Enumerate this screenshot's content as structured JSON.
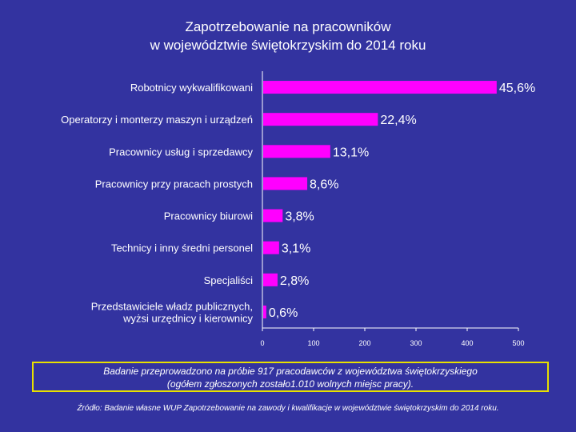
{
  "title": {
    "line1": "Zapotrzebowanie na pracowników",
    "line2": "w województwie świętokrzyskim do 2014 roku"
  },
  "chart_data": {
    "type": "bar",
    "orientation": "horizontal",
    "categories": [
      [
        "Robotnicy  wykwalifikowani"
      ],
      [
        "Operatorzy i monterzy maszyn i urządzeń"
      ],
      [
        "Pracownicy usług i sprzedawcy"
      ],
      [
        "Pracownicy przy pracach prostych"
      ],
      [
        "Pracownicy biurowi"
      ],
      [
        "Technicy i inny średni personel"
      ],
      [
        "Specjaliści"
      ],
      [
        "Przedstawiciele władz publicznych,",
        "wyżsi urzędnicy i kierownicy"
      ]
    ],
    "values": [
      45.6,
      22.4,
      13.1,
      8.6,
      3.8,
      3.1,
      2.8,
      0.6
    ],
    "value_labels": [
      "45,6%",
      "22,4%",
      "13,1%",
      "8,6%",
      "3,8%",
      "3,1%",
      "2,8%",
      "0,6%"
    ],
    "axis_scale": "value_percent_x10",
    "xlim": [
      0,
      500
    ],
    "xticks": [
      "0",
      "100",
      "200",
      "300",
      "400",
      "500"
    ],
    "bar_color": "#ff00ff",
    "grid": false
  },
  "note": {
    "line1": "Badanie przeprowadzono na próbie 917 pracodawców z województwa świętokrzyskiego",
    "line2": "(ogółem zgłoszonych zostało1.010 wolnych miejsc pracy)."
  },
  "source": "Źródło: Badanie własne WUP Zapotrzebowanie na zawody i kwalifikacje w województwie świętokrzyskim do 2014 roku.",
  "colors": {
    "background": "#3333a0",
    "bar": "#ff00ff",
    "note_border": "#e8e000",
    "text": "#ffffff"
  }
}
